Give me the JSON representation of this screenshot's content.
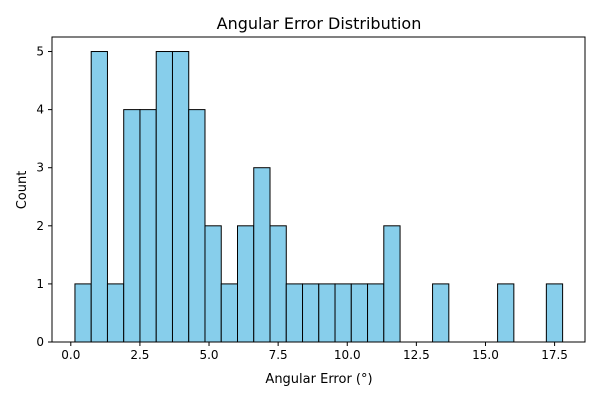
{
  "chart_data": {
    "type": "bar",
    "title": "Angular Error Distribution",
    "xlabel": "Angular Error (°)",
    "ylabel": "Count",
    "xlim": [
      -0.68,
      18.6
    ],
    "ylim": [
      0,
      5.25
    ],
    "xticks": [
      0,
      2.5,
      5,
      7.5,
      10,
      12.5,
      15,
      17.5
    ],
    "xtick_labels": [
      "0.0",
      "2.5",
      "5.0",
      "7.5",
      "10.0",
      "12.5",
      "15.0",
      "17.5"
    ],
    "yticks": [
      0,
      1,
      2,
      3,
      4,
      5
    ],
    "ytick_labels": [
      "0",
      "1",
      "2",
      "3",
      "4",
      "5"
    ],
    "bin_start": 0.15,
    "bin_width": 0.588,
    "counts": [
      1,
      5,
      1,
      4,
      4,
      5,
      5,
      4,
      2,
      1,
      2,
      3,
      2,
      1,
      1,
      1,
      1,
      1,
      1,
      2,
      0,
      0,
      1,
      0,
      0,
      0,
      1,
      0,
      0,
      1
    ],
    "bar_color": "#87CEEB",
    "edge_color": "#000000",
    "grid": false,
    "legend": "none"
  }
}
